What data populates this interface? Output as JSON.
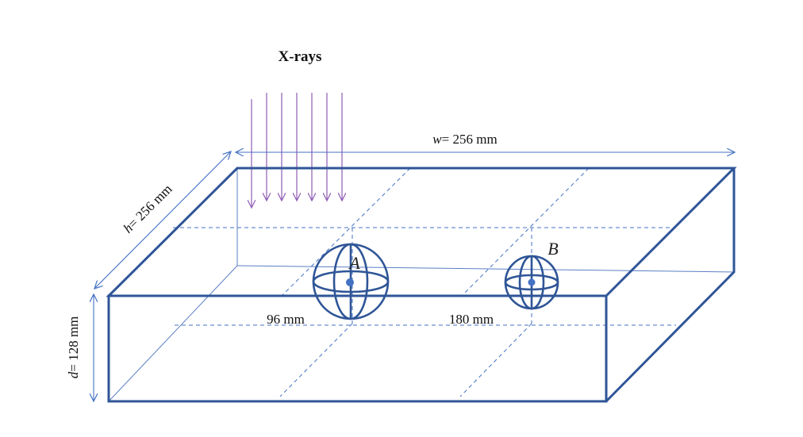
{
  "title": "X-rays",
  "dimensions": {
    "w": {
      "var": "w",
      "text": "= 256 mm"
    },
    "h": {
      "var": "h",
      "text": "= 256 mm"
    },
    "d": {
      "var": "d",
      "text": "= 128 mm"
    }
  },
  "distances": {
    "a": "96 mm",
    "b": "180 mm"
  },
  "points": {
    "a": "A",
    "b": "B"
  },
  "colors": {
    "box": "#2F5597",
    "guide": "#4472C4",
    "thin": "#5B7FC4",
    "xray": "#8E5CB5",
    "sphere": "#2F5597",
    "dot": "#4472C4"
  }
}
